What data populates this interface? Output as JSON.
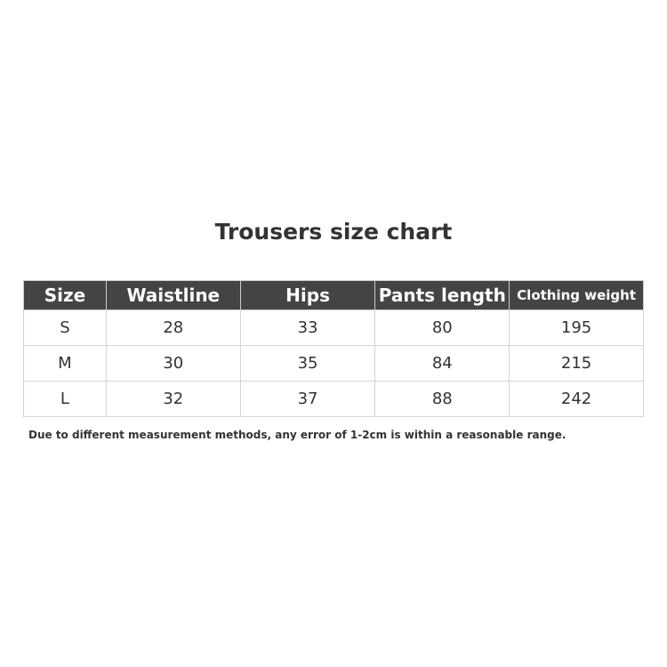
{
  "title": "Trousers size chart",
  "table": {
    "headers": [
      "Size",
      "Waistline",
      "Hips",
      "Pants length",
      "Clothing weight"
    ],
    "rows": [
      [
        "S",
        "28",
        "33",
        "80",
        "195"
      ],
      [
        "M",
        "30",
        "35",
        "84",
        "215"
      ],
      [
        "L",
        "32",
        "37",
        "88",
        "242"
      ]
    ]
  },
  "note": "Due to different measurement methods, any error of 1-2cm is within a reasonable range.",
  "colors": {
    "header_bg": "#444444",
    "header_text": "#ffffff",
    "border": "#d4d4d4"
  }
}
